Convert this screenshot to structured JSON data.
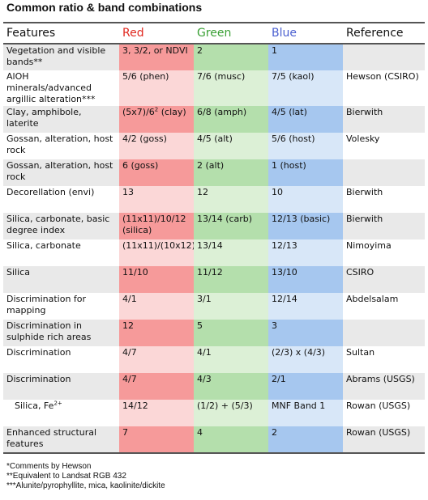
{
  "title": "Common ratio & band combinations",
  "headers": {
    "features": "Features",
    "red": "Red",
    "green": "Green",
    "blue": "Blue",
    "reference": "Reference"
  },
  "rows": [
    {
      "feature": "Vegetation and visible bands**",
      "red": "3, 3/2, or NDVI",
      "green": "2",
      "blue": "1",
      "reference": ""
    },
    {
      "feature": "AlOH minerals/advanced argillic alteration***",
      "red": "5/6 (phen)",
      "green": "7/6 (musc)",
      "blue": "7/5 (kaol)",
      "reference": "Hewson (CSIRO)"
    },
    {
      "feature": "Clay, amphibole, laterite",
      "red": "(5x7)/6",
      "red_sup": "2",
      "red_tail": " (clay)",
      "green": "6/8 (amph)",
      "blue": "4/5 (lat)",
      "reference": "Bierwith"
    },
    {
      "feature": "Gossan, alteration, host rock",
      "red": "4/2 (goss)",
      "green": "4/5 (alt)",
      "blue": "5/6 (host)",
      "reference": "Volesky"
    },
    {
      "feature": "Gossan, alteration, host rock",
      "red": "6 (goss)",
      "green": "2 (alt)",
      "blue": "1 (host)",
      "reference": ""
    },
    {
      "feature": "Decorellation (envi)",
      "red": "13",
      "green": "12",
      "blue": "10",
      "reference": "Bierwith"
    },
    {
      "feature": "Silica, carbonate, basic degree index",
      "red": "(11x11)/10/12 (silica)",
      "green": "13/14 (carb)",
      "blue": "12/13 (basic)",
      "reference": "Bierwith"
    },
    {
      "feature": "Silica, carbonate",
      "red": "(11x11)/(10x12)",
      "green": "13/14",
      "blue": "12/13",
      "reference": "Nimoyima"
    },
    {
      "feature": "Silica",
      "red": "11/10",
      "green": "11/12",
      "blue": "13/10",
      "reference": "CSIRO"
    },
    {
      "feature": "Discrimination for mapping",
      "red": "4/1",
      "green": "3/1",
      "blue": "12/14",
      "reference": "Abdelsalam"
    },
    {
      "feature": "Discrimination in sulphide rich areas",
      "red": "12",
      "green": "5",
      "blue": "3",
      "reference": ""
    },
    {
      "feature": "Discrimination",
      "red": "4/7",
      "green": "4/1",
      "blue": "(2/3) x (4/3)",
      "reference": "Sultan"
    },
    {
      "feature": "Discrimination",
      "red": "4/7",
      "green": "4/3",
      "blue": "2/1",
      "reference": "Abrams (USGS)"
    },
    {
      "feature": "Silica, Fe",
      "feature_sup": "2+",
      "red": "14/12",
      "green": "(1/2) + (5/3)",
      "blue": "MNF Band 1",
      "reference": "Rowan (USGS)"
    },
    {
      "feature": "Enhanced structural features",
      "red": "7",
      "green": "4",
      "blue": "2",
      "reference": "Rowan (USGS)"
    }
  ],
  "notes": [
    "*Comments by Hewson",
    "**Equivalent to Landsat RGB 432",
    "***Alunite/pyrophyllite, mica, kaolinite/dickite"
  ],
  "colors": {
    "red": "#e0281f",
    "green": "#3aa035",
    "blue": "#4a5fd0"
  }
}
